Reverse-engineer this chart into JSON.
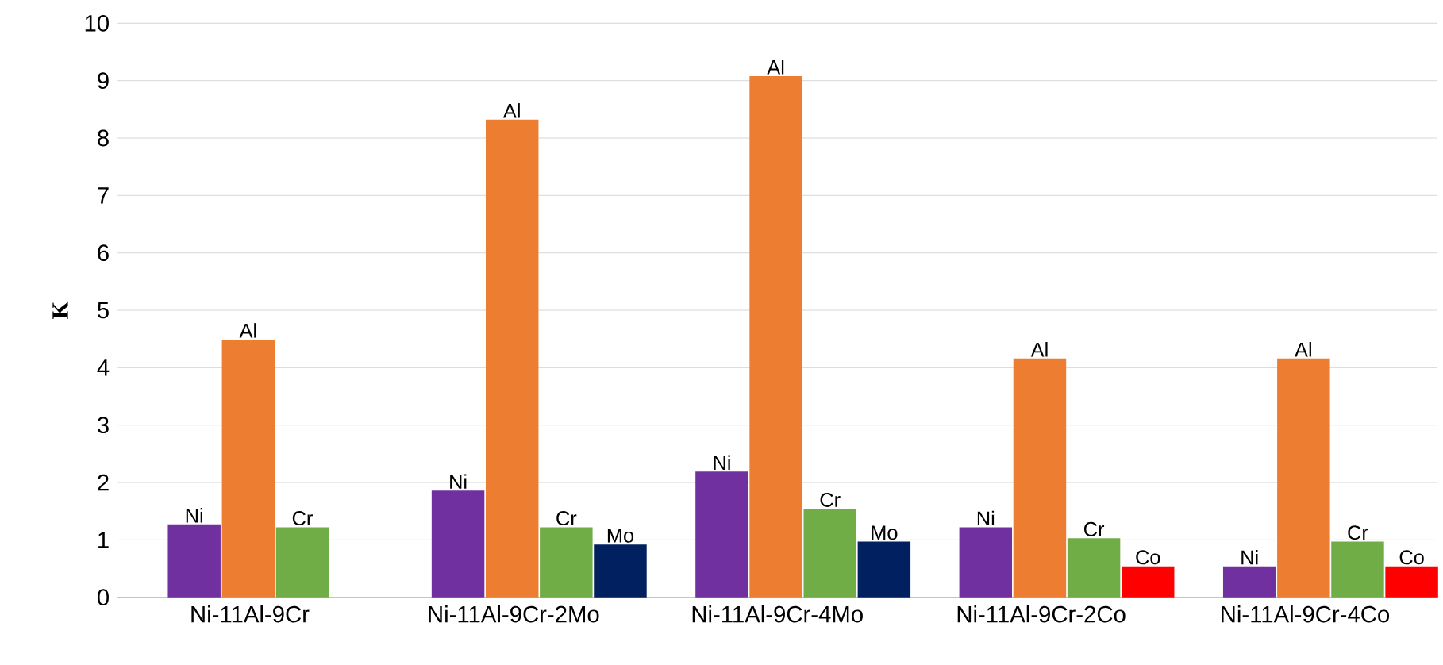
{
  "chart_data": {
    "type": "bar",
    "ylabel": "K",
    "categories": [
      "Ni-11Al-9Cr",
      "Ni-11Al-9Cr-2Mo",
      "Ni-11Al-9Cr-4Mo",
      "Ni-11Al-9Cr-2Co",
      "Ni-11Al-9Cr-4Co"
    ],
    "series": [
      {
        "name": "Ni",
        "color": "#7030a0",
        "values": [
          1.27,
          1.86,
          2.19,
          1.22,
          0.54
        ]
      },
      {
        "name": "Al",
        "color": "#ed7d31",
        "values": [
          4.49,
          8.32,
          9.08,
          4.16,
          4.16
        ]
      },
      {
        "name": "Cr",
        "color": "#70ad47",
        "values": [
          1.22,
          1.22,
          1.54,
          1.03,
          0.97
        ]
      },
      {
        "name": "Mo",
        "color": "#002060",
        "values": [
          null,
          0.92,
          0.97,
          null,
          null
        ]
      },
      {
        "name": "Co",
        "color": "#ff0000",
        "values": [
          null,
          null,
          null,
          0.54,
          0.54
        ]
      }
    ],
    "ylim": [
      0,
      10
    ],
    "yticks": [
      0,
      1,
      2,
      3,
      4,
      5,
      6,
      7,
      8,
      9,
      10
    ],
    "grid": "y"
  }
}
